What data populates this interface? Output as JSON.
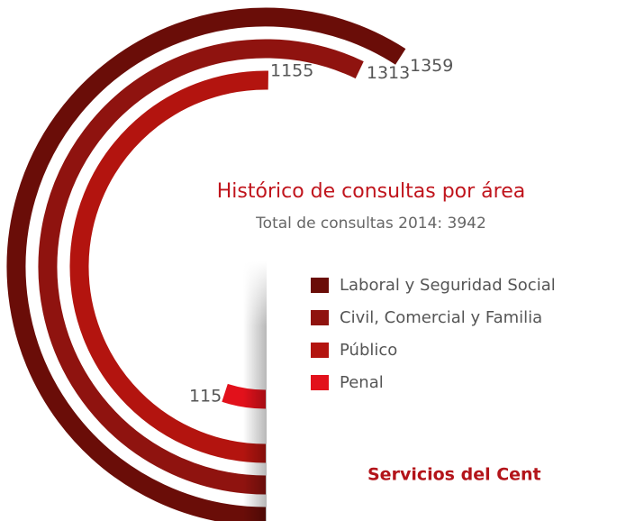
{
  "chart_data": {
    "type": "radial_bar",
    "title": "Histórico de consultas por área",
    "subtitle": "Total  de consultas 2014: 3942",
    "categories": [
      "Laboral y Seguridad Social",
      "Civil, Comercial y Familia",
      "Público",
      "Penal"
    ],
    "values": [
      1359,
      1313,
      1155,
      115
    ],
    "colors": [
      "#6a0d08",
      "#8f130f",
      "#b3140f",
      "#e2111b"
    ],
    "panel_heading": "Servicios del Cent"
  }
}
